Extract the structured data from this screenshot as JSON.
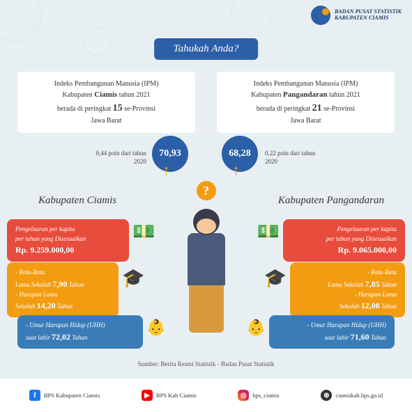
{
  "header": {
    "org1": "BADAN PUSAT STATISTIK",
    "org2": "KABUPATEN CIAMIS"
  },
  "title": "Tahukah Anda?",
  "box1": {
    "t1": "Indeks Pembangunan Manusia (IPM)",
    "t2": "Kabupaten",
    "r": "Ciamis",
    "t3": "tahun 2021",
    "t4": "berada di peringkat",
    "rank": "15",
    "t5": "se-Provinsi",
    "t6": "Jawa Barat"
  },
  "box2": {
    "t1": "Indeks Pembangunan Manusia (IPM)",
    "t2": "Kabupaten",
    "r": "Pangandaran",
    "t3": "tahun 2021",
    "t4": "berada di peringkat",
    "rank": "21",
    "t5": "se-Provinsi",
    "t6": "Jawa Barat"
  },
  "ipm1": "70,93",
  "ipm2": "68,28",
  "pt1": "0,44 poin dari tahun 2020",
  "pt2": "0,22 poin dari tahun 2020",
  "kab1": "Kabupaten Ciamis",
  "kab2": "Kabupaten Pangandaran",
  "cL1": {
    "l1": "Pengeluaran per kapita",
    "l2": "per tahun yang Disesuaikan",
    "v": "Rp. 9.259.000,00"
  },
  "cR1": {
    "l1": "Pengeluaran per kapita",
    "l2": "per tahun yang Disesuaikan",
    "v": "Rp. 9.065.000,00"
  },
  "cL2": {
    "l1": "- Rata-Rata",
    "l2": "Lama Sekolah",
    "v1": "7,90",
    "u": "Tahun",
    "l3": "- Harapan Lama",
    "l4": "Sekolah",
    "v2": "14,20"
  },
  "cR2": {
    "l1": "- Rata-Rata",
    "l2": "Lama Sekolah",
    "v1": "7,85",
    "u": "Tahun",
    "l3": "- Harapan Lama",
    "l4": "Sekolah",
    "v2": "12,08"
  },
  "cL3": {
    "l1": "- Umur Harapan Hidup (UHH)",
    "l2": "saat lahir",
    "v": "72,02",
    "u": "Tahun"
  },
  "cR3": {
    "l1": "- Umur Harapan Hidup (UHH)",
    "l2": "saat lahir",
    "v": "71,60",
    "u": "Tahun"
  },
  "src": "Sumber: Berita Resmi Statistik - Badan Pusat Statistik",
  "footer": {
    "fb": "BPS Kabupaten Ciamis",
    "yt": "BPS Kab Ciamis",
    "ig": "bps_ciamis",
    "web": "ciamiskab.bps.go.id"
  },
  "colors": {
    "blue": "#2b5fa8",
    "orange": "#f39c12",
    "red": "#e74c3c",
    "lblue": "#3a7cb8",
    "bg": "#e8eff2"
  }
}
